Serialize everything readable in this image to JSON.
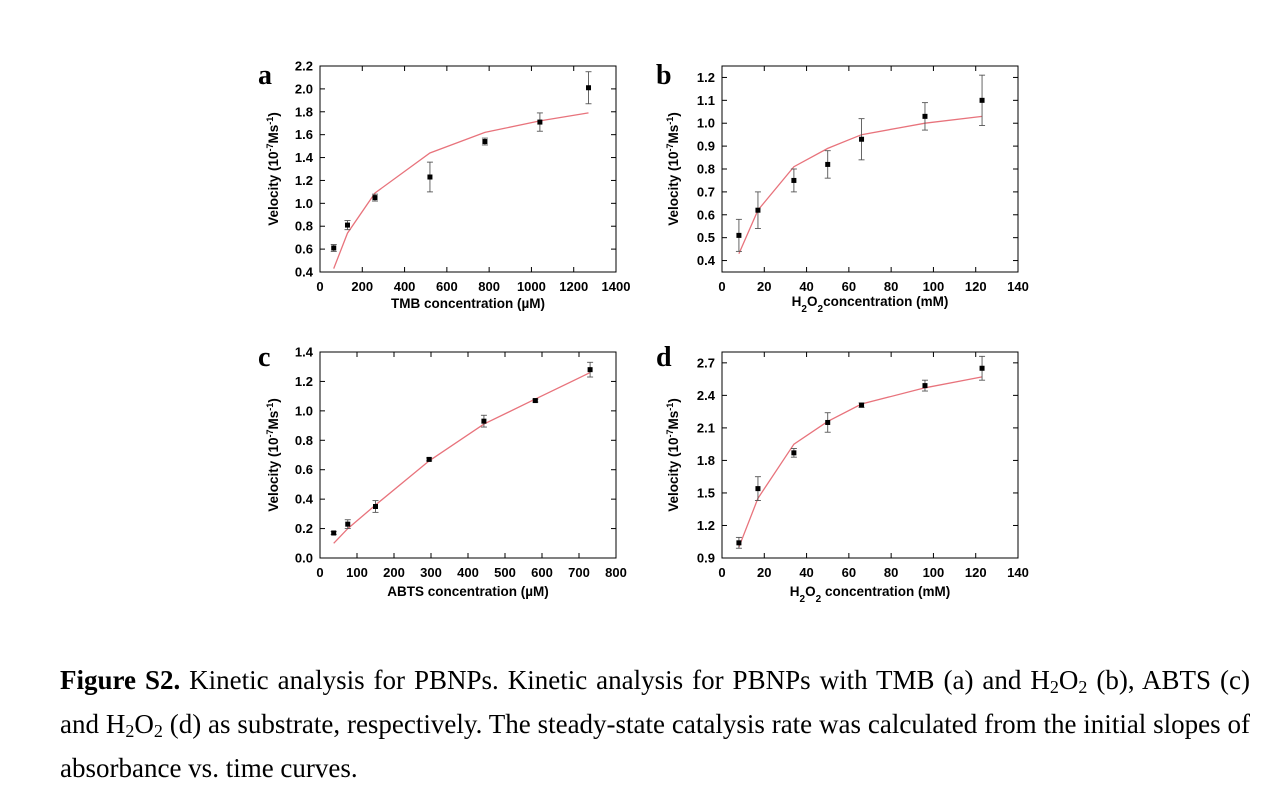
{
  "chart_data": [
    {
      "panel": "a",
      "type": "scatter",
      "xlabel": "TMB concentration (µM)",
      "ylabel_parts": [
        "Velocity (10",
        "-7",
        "Ms",
        "-1",
        ")"
      ],
      "xlim": [
        0,
        1400
      ],
      "ylim": [
        0.4,
        2.2
      ],
      "xticks": [
        0,
        200,
        400,
        600,
        800,
        1000,
        1200,
        1400
      ],
      "yticks": [
        0.4,
        0.6,
        0.8,
        1.0,
        1.2,
        1.4,
        1.6,
        1.8,
        2.0,
        2.2
      ],
      "ytick_labels": [
        "0.4",
        "0.6",
        "0.8",
        "1.0",
        "1.2",
        "1.4",
        "1.6",
        "1.8",
        "2.0",
        "2.2"
      ],
      "points": {
        "x": [
          65,
          130,
          260,
          520,
          780,
          1040,
          1270
        ],
        "y": [
          0.61,
          0.81,
          1.05,
          1.23,
          1.54,
          1.71,
          2.01
        ],
        "err": [
          0.03,
          0.04,
          0.03,
          0.13,
          0.03,
          0.08,
          0.14
        ]
      },
      "fit": {
        "x": [
          65,
          130,
          260,
          520,
          780,
          1040,
          1270
        ],
        "y": [
          0.43,
          0.74,
          1.09,
          1.44,
          1.62,
          1.72,
          1.79
        ]
      },
      "grid": false
    },
    {
      "panel": "b",
      "type": "scatter",
      "xlabel_parts": [
        "H",
        "2",
        "O",
        "2",
        "concentration (mM)"
      ],
      "ylabel_parts": [
        "Velocity (10",
        "-7",
        "Ms",
        "-1",
        ")"
      ],
      "xlim": [
        0,
        140
      ],
      "ylim": [
        0.35,
        1.25
      ],
      "xticks": [
        0,
        20,
        40,
        60,
        80,
        100,
        120,
        140
      ],
      "yticks": [
        0.4,
        0.5,
        0.6,
        0.7,
        0.8,
        0.9,
        1.0,
        1.1,
        1.2
      ],
      "ytick_labels": [
        "0.4",
        "0.5",
        "0.6",
        "0.7",
        "0.8",
        "0.9",
        "1.0",
        "1.1",
        "1.2"
      ],
      "points": {
        "x": [
          8,
          17,
          34,
          50,
          66,
          96,
          123
        ],
        "y": [
          0.51,
          0.62,
          0.75,
          0.82,
          0.93,
          1.03,
          1.1
        ],
        "err": [
          0.07,
          0.08,
          0.05,
          0.06,
          0.09,
          0.06,
          0.11
        ]
      },
      "fit": {
        "x": [
          8,
          17,
          34,
          50,
          66,
          96,
          123
        ],
        "y": [
          0.43,
          0.62,
          0.81,
          0.89,
          0.95,
          1.0,
          1.03
        ]
      },
      "grid": false
    },
    {
      "panel": "c",
      "type": "scatter",
      "xlabel": "ABTS concentration (µM)",
      "ylabel_parts": [
        "Velocity (10",
        "-7",
        "Ms",
        "-1",
        ")"
      ],
      "xlim": [
        0,
        800
      ],
      "ylim": [
        0.0,
        1.4
      ],
      "xticks": [
        0,
        100,
        200,
        300,
        400,
        500,
        600,
        700,
        800
      ],
      "yticks": [
        0.0,
        0.2,
        0.4,
        0.6,
        0.8,
        1.0,
        1.2,
        1.4
      ],
      "ytick_labels": [
        "0.0",
        "0.2",
        "0.4",
        "0.6",
        "0.8",
        "1.0",
        "1.2",
        "1.4"
      ],
      "points": {
        "x": [
          37,
          75,
          150,
          295,
          443,
          582,
          730
        ],
        "y": [
          0.17,
          0.23,
          0.35,
          0.67,
          0.93,
          1.07,
          1.28
        ],
        "err": [
          0.01,
          0.03,
          0.04,
          0.01,
          0.04,
          0.01,
          0.05
        ]
      },
      "fit": {
        "x": [
          37,
          75,
          150,
          295,
          443,
          582,
          730
        ],
        "y": [
          0.1,
          0.2,
          0.36,
          0.66,
          0.91,
          1.08,
          1.26
        ]
      },
      "grid": false
    },
    {
      "panel": "d",
      "type": "scatter",
      "xlabel_parts": [
        "H",
        "2",
        "O",
        "2",
        " concentration (mM)"
      ],
      "ylabel_parts": [
        "Velocity (10",
        "-7",
        "Ms",
        "-1",
        ")"
      ],
      "xlim": [
        0,
        140
      ],
      "ylim": [
        0.9,
        2.8
      ],
      "xticks": [
        0,
        20,
        40,
        60,
        80,
        100,
        120,
        140
      ],
      "yticks": [
        0.9,
        1.2,
        1.5,
        1.8,
        2.1,
        2.4,
        2.7
      ],
      "ytick_labels": [
        "0.9",
        "1.2",
        "1.5",
        "1.8",
        "2.1",
        "2.4",
        "2.7"
      ],
      "points": {
        "x": [
          8,
          17,
          34,
          50,
          66,
          96,
          123
        ],
        "y": [
          1.04,
          1.54,
          1.87,
          2.15,
          2.31,
          2.49,
          2.65
        ],
        "err": [
          0.05,
          0.11,
          0.04,
          0.09,
          0.02,
          0.05,
          0.11
        ]
      },
      "fit": {
        "x": [
          8,
          17,
          34,
          50,
          66,
          96,
          123
        ],
        "y": [
          1.0,
          1.45,
          1.95,
          2.16,
          2.32,
          2.47,
          2.57
        ]
      },
      "grid": false
    }
  ],
  "caption": {
    "label": "Figure S2.",
    "t1": " Kinetic analysis for PBNPs. Kinetic analysis for PBNPs with TMB (a) and H",
    "s1": "2",
    "t2": "O",
    "s2": "2",
    "t3": " (b), ABTS (c) and H",
    "s3": "2",
    "t4": "O",
    "s4": "2",
    "t5": " (d) as substrate, respectively. The steady-state catalysis rate was calculated from the initial slopes of absorbance vs. time curves."
  },
  "colors": {
    "fit_line": "#e8737c",
    "points": "#000000",
    "axis": "#000000"
  }
}
